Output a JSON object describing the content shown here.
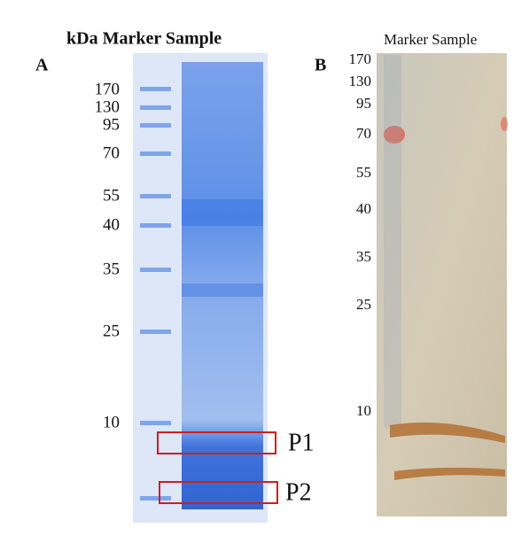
{
  "panel_a": {
    "label": "A",
    "header": "kDa Marker Sample",
    "markers": [
      "170",
      "130",
      "95",
      "70",
      "55",
      "40",
      "35",
      "25",
      "10"
    ],
    "boxes": [
      "P1",
      "P2"
    ]
  },
  "panel_b": {
    "label": "B",
    "header": "Marker Sample",
    "markers": [
      "170",
      "130",
      "95",
      "70",
      "55",
      "40",
      "35",
      "25",
      "10"
    ]
  }
}
